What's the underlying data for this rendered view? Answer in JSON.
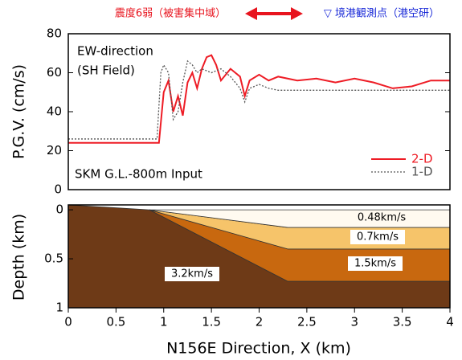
{
  "chart_data": [
    {
      "type": "line",
      "annotations": [
        "震度6弱（被害集中域）",
        "▽ 境港観測点（港空研）",
        "EW-direction",
        "(SH Field)",
        "SKM G.L.-800m Input"
      ],
      "y_label": "P.G.V. (cm/s)",
      "xlim": [
        0,
        4
      ],
      "ylim": [
        0,
        80
      ],
      "yticks": [
        0,
        20,
        40,
        60,
        80
      ],
      "series": [
        {
          "name": "2-D",
          "color": "#ee1c25",
          "dash": false,
          "x": [
            0,
            0.95,
            1.0,
            1.05,
            1.1,
            1.15,
            1.2,
            1.25,
            1.3,
            1.35,
            1.4,
            1.45,
            1.5,
            1.55,
            1.6,
            1.7,
            1.8,
            1.85,
            1.9,
            2.0,
            2.1,
            2.2,
            2.4,
            2.6,
            2.8,
            3.0,
            3.2,
            3.4,
            3.6,
            3.8,
            4.0
          ],
          "values": [
            24,
            24,
            50,
            56,
            40,
            48,
            38,
            55,
            60,
            52,
            62,
            68,
            69,
            64,
            56,
            62,
            58,
            48,
            56,
            59,
            56,
            58,
            56,
            57,
            55,
            57,
            55,
            52,
            53,
            56,
            56
          ]
        },
        {
          "name": "1-D",
          "color": "#555555",
          "dash": true,
          "x": [
            0,
            0.93,
            0.97,
            1.0,
            1.05,
            1.1,
            1.15,
            1.2,
            1.25,
            1.3,
            1.35,
            1.4,
            1.5,
            1.6,
            1.7,
            1.8,
            1.85,
            1.9,
            2.0,
            2.1,
            2.2,
            2.3,
            4.0
          ],
          "values": [
            26,
            26,
            60,
            64,
            60,
            36,
            40,
            55,
            66,
            64,
            60,
            62,
            60,
            62,
            58,
            52,
            45,
            52,
            54,
            52,
            51,
            51,
            51
          ]
        }
      ]
    },
    {
      "type": "cross-section",
      "x_label": "N156E Direction, X (km)",
      "y_label": "Depth (km)",
      "xlim": [
        0,
        4
      ],
      "xticks": [
        0,
        0.5,
        1,
        1.5,
        2,
        2.5,
        3,
        3.5,
        4
      ],
      "ylim": [
        1,
        -0.05
      ],
      "yticks": [
        0,
        0.5,
        1
      ],
      "layers": [
        {
          "label": "3.2km/s",
          "color": "#6e3a17",
          "x": [
            0,
            0.85,
            2.3,
            4,
            4,
            0
          ],
          "depth": [
            -0.05,
            0,
            0.73,
            0.73,
            1,
            1
          ]
        },
        {
          "label": "1.5km/s",
          "color": "#c8680f",
          "x": [
            0.85,
            2.3,
            4,
            4,
            2.3
          ],
          "depth": [
            0,
            0.4,
            0.4,
            0.73,
            0.73
          ]
        },
        {
          "label": "0.7km/s",
          "color": "#f6c46a",
          "x": [
            0.85,
            2.3,
            4,
            4,
            2.3
          ],
          "depth": [
            0,
            0.18,
            0.18,
            0.4,
            0.4
          ]
        },
        {
          "label": "0.48km/s",
          "color": "#fffaf0",
          "x": [
            0.85,
            4,
            4,
            2.3
          ],
          "depth": [
            0,
            0,
            0.18,
            0.18
          ]
        }
      ]
    }
  ]
}
